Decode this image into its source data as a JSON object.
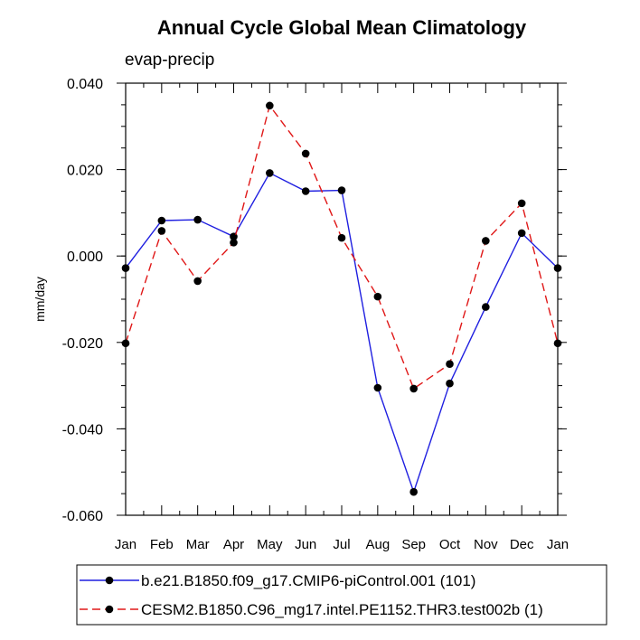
{
  "chart_data": {
    "type": "line",
    "title": "Annual Cycle Global Mean Climatology",
    "subtitle": "evap-precip",
    "xlabel": "",
    "ylabel": "mm/day",
    "categories": [
      "Jan",
      "Feb",
      "Mar",
      "Apr",
      "May",
      "Jun",
      "Jul",
      "Aug",
      "Sep",
      "Oct",
      "Nov",
      "Dec",
      "Jan"
    ],
    "ylim": [
      -0.06,
      0.04
    ],
    "yticks": [
      -0.06,
      -0.04,
      -0.02,
      0.0,
      0.02,
      0.04
    ],
    "ytick_labels": [
      "-0.060",
      "-0.040",
      "-0.020",
      "0.000",
      "0.020",
      "0.040"
    ],
    "grid": false,
    "series": [
      {
        "name": "b.e21.B1850.f09_g17.CMIP6-piControl.001 (101)",
        "color": "#1f1fe0",
        "dash": "solid",
        "values": [
          -0.0028,
          0.0082,
          0.0084,
          0.0045,
          0.0192,
          0.015,
          0.0152,
          -0.0305,
          -0.0546,
          -0.0295,
          -0.0118,
          0.0053,
          -0.0028
        ]
      },
      {
        "name": "CESM2.B1850.C96_mg17.intel.PE1152.THR3.test002b (1)",
        "color": "#e01818",
        "dash": "dashed",
        "values": [
          -0.0202,
          0.0058,
          -0.0058,
          0.0031,
          0.0348,
          0.0237,
          0.0042,
          -0.0094,
          -0.0307,
          -0.025,
          0.0035,
          0.0122,
          -0.0202
        ]
      }
    ],
    "legend_position": "bottom"
  }
}
